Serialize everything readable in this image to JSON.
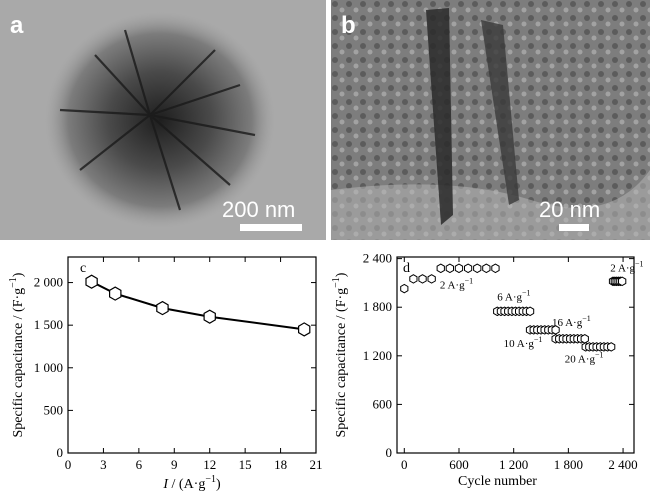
{
  "panel_a": {
    "letter": "a",
    "scale_label": "200 nm"
  },
  "panel_b": {
    "letter": "b",
    "scale_label": "20 nm"
  },
  "chart_data": [
    {
      "type": "line",
      "panel_label": "c",
      "xlabel_italic": "I",
      "xlabel_rest": " / (A·g",
      "xlabel_sup": "−1",
      "xlabel_close": ")",
      "ylabel": "Specific capacitance / (F·g",
      "ylabel_sup": "−1",
      "ylabel_close": ")",
      "xlim": [
        0,
        21
      ],
      "ylim": [
        0,
        2300
      ],
      "xticks": [
        0,
        3,
        6,
        9,
        12,
        15,
        18,
        21
      ],
      "xtick_labels": [
        "0",
        "3",
        "6",
        "9",
        "12",
        "15",
        "18",
        "21"
      ],
      "yticks": [
        0,
        500,
        1000,
        1500,
        2000
      ],
      "ytick_labels": [
        "0",
        "500",
        "1 000",
        "1 500",
        "2 000"
      ],
      "series": [
        {
          "x": [
            2,
            4,
            8,
            12,
            20
          ],
          "y": [
            2010,
            1870,
            1700,
            1600,
            1450
          ]
        }
      ]
    },
    {
      "type": "scatter",
      "panel_label": "d",
      "xlabel": "Cycle number",
      "ylabel": "Specific capacitance / (F·g",
      "ylabel_sup": "−1",
      "ylabel_close": ")",
      "xlim": [
        -80,
        2520
      ],
      "ylim": [
        0,
        2420
      ],
      "xticks": [
        0,
        600,
        1200,
        1800,
        2400
      ],
      "xtick_labels": [
        "0",
        "600",
        "1 200",
        "1 800",
        "2 400"
      ],
      "yticks": [
        0,
        600,
        1200,
        1800,
        2400
      ],
      "ytick_labels": [
        "0",
        "600",
        "1 200",
        "1 800",
        "2 400"
      ],
      "series": [
        {
          "x": [
            0,
            100,
            200,
            300,
            400,
            500,
            600,
            700,
            800,
            900,
            1000
          ],
          "y": [
            2030,
            2150,
            2150,
            2150,
            2280,
            2280,
            2280,
            2280,
            2280,
            2280,
            2280
          ]
        },
        {
          "x": [
            1020,
            1060,
            1100,
            1140,
            1180,
            1220,
            1260,
            1300,
            1340,
            1380
          ],
          "y": [
            1750,
            1750,
            1750,
            1750,
            1750,
            1750,
            1750,
            1750,
            1750,
            1750
          ]
        },
        {
          "x": [
            1380,
            1420,
            1460,
            1500,
            1540,
            1580,
            1620,
            1660
          ],
          "y": [
            1520,
            1520,
            1520,
            1520,
            1520,
            1520,
            1520,
            1520
          ]
        },
        {
          "x": [
            1660,
            1700,
            1740,
            1780,
            1820,
            1860,
            1900,
            1940,
            1980
          ],
          "y": [
            1410,
            1410,
            1410,
            1410,
            1410,
            1410,
            1410,
            1410,
            1410
          ]
        },
        {
          "x": [
            1990,
            2030,
            2070,
            2110,
            2150,
            2190,
            2230,
            2270
          ],
          "y": [
            1310,
            1310,
            1310,
            1310,
            1310,
            1310,
            1310,
            1310
          ]
        },
        {
          "x": [
            2290,
            2310,
            2330,
            2350,
            2370,
            2390
          ],
          "y": [
            2120,
            2120,
            2120,
            2120,
            2120,
            2120
          ]
        }
      ],
      "annotations": [
        {
          "text": "2 A·g",
          "sup": "−1",
          "x": 390,
          "y": 2030
        },
        {
          "text": "6 A·g",
          "sup": "−1",
          "x": 1020,
          "y": 1880
        },
        {
          "text": "10 A·g",
          "sup": "−1",
          "x": 1090,
          "y": 1310
        },
        {
          "text": "16 A·g",
          "sup": "−1",
          "x": 1620,
          "y": 1570
        },
        {
          "text": "20 A·g",
          "sup": "−1",
          "x": 1760,
          "y": 1120
        },
        {
          "text": "2 A·g",
          "sup": "−1",
          "x": 2260,
          "y": 2240
        }
      ]
    }
  ]
}
